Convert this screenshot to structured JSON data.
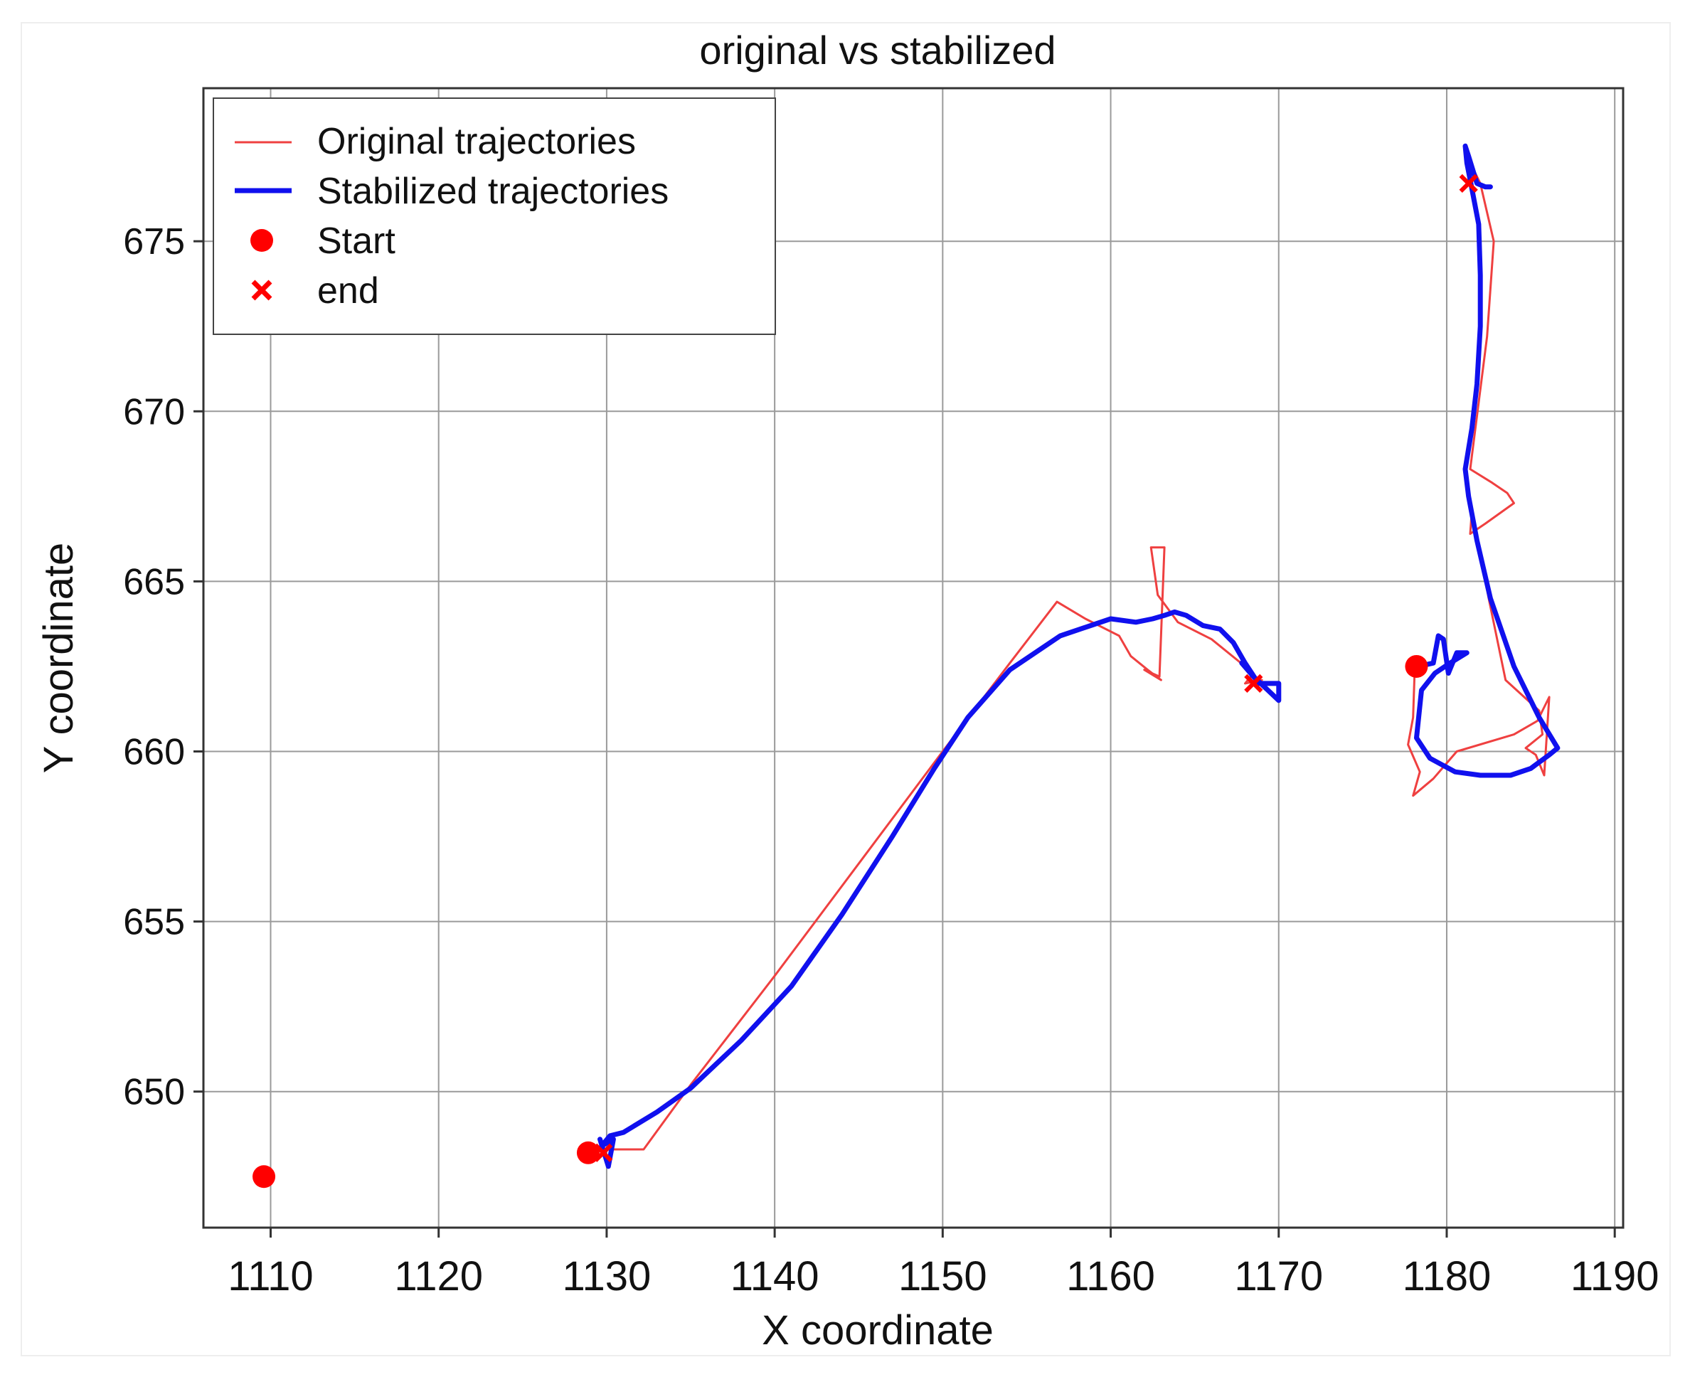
{
  "chart_data": {
    "type": "line",
    "title": "original vs stabilized",
    "xlabel": "X coordinate",
    "ylabel": "Y coordinate",
    "xlim": [
      1106,
      1190.5
    ],
    "ylim": [
      646,
      679.5
    ],
    "xticks": [
      1110,
      1120,
      1130,
      1140,
      1150,
      1160,
      1170,
      1180,
      1190
    ],
    "yticks": [
      650,
      655,
      660,
      665,
      670,
      675
    ],
    "grid": true,
    "legend_position": "top-left",
    "colors": {
      "original": "#ef4040",
      "stabilized": "#1010ee",
      "start": "#ff0000",
      "end": "#ff0000"
    },
    "legend": [
      {
        "key": "original",
        "label": "Original trajectories"
      },
      {
        "key": "stabilized",
        "label": "Stabilized trajectories"
      },
      {
        "key": "start",
        "label": "Start"
      },
      {
        "key": "end",
        "label": "end"
      }
    ],
    "series": [
      {
        "name": "Original trajectories",
        "kind": "original",
        "points": [
          [
            1130,
            648.3
          ],
          [
            1132.2,
            648.3
          ],
          [
            1135,
            650.2
          ],
          [
            1140,
            653.4
          ],
          [
            1145,
            656.7
          ],
          [
            1150,
            660.0
          ],
          [
            1154,
            662.6
          ],
          [
            1156.8,
            664.4
          ],
          [
            1158.5,
            663.9
          ],
          [
            1160.5,
            663.4
          ],
          [
            1161.2,
            662.8
          ],
          [
            1162.2,
            662.4
          ],
          [
            1163,
            662.1
          ],
          [
            1162,
            662.4
          ],
          [
            1162.9,
            662.2
          ],
          [
            1163.2,
            666.0
          ],
          [
            1162.4,
            666.0
          ],
          [
            1162.8,
            664.6
          ],
          [
            1164,
            663.8
          ],
          [
            1166,
            663.3
          ],
          [
            1168.5,
            662.3
          ],
          [
            1168,
            662.0
          ],
          [
            1169,
            662.1
          ]
        ]
      },
      {
        "name": "Original trajectories",
        "kind": "original",
        "points": [
          [
            1178.1,
            662.5
          ],
          [
            1178.0,
            661.0
          ],
          [
            1177.7,
            660.2
          ],
          [
            1178.4,
            659.4
          ],
          [
            1178.0,
            658.7
          ],
          [
            1179.2,
            659.2
          ],
          [
            1180.6,
            660.0
          ],
          [
            1184.0,
            660.5
          ],
          [
            1185.4,
            660.9
          ],
          [
            1186.1,
            661.6
          ],
          [
            1185.8,
            659.3
          ],
          [
            1185.3,
            659.9
          ],
          [
            1184.7,
            660.1
          ],
          [
            1185.7,
            660.5
          ],
          [
            1185.5,
            661.2
          ],
          [
            1183.5,
            662.1
          ],
          [
            1182.5,
            664.5
          ],
          [
            1181.5,
            667.1
          ],
          [
            1181.4,
            666.4
          ],
          [
            1182.3,
            666.7
          ],
          [
            1184.0,
            667.3
          ],
          [
            1183.6,
            667.6
          ],
          [
            1182.7,
            667.9
          ],
          [
            1181.4,
            668.3
          ],
          [
            1181.5,
            668.7
          ],
          [
            1182.4,
            672.2
          ],
          [
            1182.8,
            675.0
          ],
          [
            1182.0,
            676.7
          ],
          [
            1181.3,
            677.4
          ]
        ]
      },
      {
        "name": "Stabilized trajectories",
        "kind": "stabilized",
        "points": [
          [
            1129.6,
            648.6
          ],
          [
            1130.1,
            647.8
          ],
          [
            1130.4,
            648.6
          ],
          [
            1129.7,
            648.4
          ],
          [
            1130.2,
            648.7
          ],
          [
            1131,
            648.8
          ],
          [
            1133,
            649.4
          ],
          [
            1135,
            650.1
          ],
          [
            1138,
            651.5
          ],
          [
            1141,
            653.1
          ],
          [
            1144,
            655.2
          ],
          [
            1147,
            657.5
          ],
          [
            1149.5,
            659.5
          ],
          [
            1151.5,
            661.0
          ],
          [
            1154,
            662.4
          ],
          [
            1157,
            663.4
          ],
          [
            1160,
            663.9
          ],
          [
            1161.5,
            663.8
          ],
          [
            1162.5,
            663.9
          ],
          [
            1163.2,
            664.0
          ],
          [
            1163.8,
            664.1
          ],
          [
            1164.5,
            664.0
          ],
          [
            1165.5,
            663.7
          ],
          [
            1166.5,
            663.6
          ],
          [
            1167.3,
            663.2
          ],
          [
            1168.0,
            662.6
          ],
          [
            1168.8,
            662.0
          ],
          [
            1170.0,
            662.0
          ],
          [
            1170.0,
            661.5
          ],
          [
            1168.5,
            662.2
          ],
          [
            1167.8,
            662.6
          ]
        ]
      },
      {
        "name": "Stabilized trajectories",
        "kind": "stabilized",
        "points": [
          [
            1178.3,
            662.5
          ],
          [
            1179.2,
            662.6
          ],
          [
            1179.5,
            663.4
          ],
          [
            1179.8,
            663.3
          ],
          [
            1180.1,
            662.3
          ],
          [
            1180.6,
            662.9
          ],
          [
            1181.2,
            662.9
          ],
          [
            1180.2,
            662.6
          ],
          [
            1179.3,
            662.3
          ],
          [
            1178.5,
            661.8
          ],
          [
            1178.2,
            660.4
          ],
          [
            1179.0,
            659.8
          ],
          [
            1180.5,
            659.4
          ],
          [
            1182.0,
            659.3
          ],
          [
            1183.8,
            659.3
          ],
          [
            1185.0,
            659.5
          ],
          [
            1186.1,
            659.9
          ],
          [
            1186.6,
            660.1
          ],
          [
            1185.5,
            661.0
          ],
          [
            1184.0,
            662.5
          ],
          [
            1182.6,
            664.5
          ],
          [
            1181.8,
            666.2
          ],
          [
            1181.3,
            667.5
          ],
          [
            1181.1,
            668.3
          ],
          [
            1181.5,
            669.5
          ],
          [
            1181.8,
            670.8
          ],
          [
            1182.0,
            672.5
          ],
          [
            1182.0,
            674.0
          ],
          [
            1181.9,
            675.5
          ],
          [
            1181.4,
            676.8
          ],
          [
            1181.2,
            677.3
          ],
          [
            1181.1,
            677.8
          ],
          [
            1181.3,
            677.5
          ],
          [
            1181.8,
            676.7
          ],
          [
            1182.3,
            676.6
          ],
          [
            1182.6,
            676.6
          ]
        ]
      }
    ],
    "start_points": [
      [
        1109.6,
        647.5
      ],
      [
        1128.9,
        648.2
      ],
      [
        1178.2,
        662.5
      ]
    ],
    "end_points": [
      [
        1109.6,
        647.5
      ],
      [
        1129.8,
        648.2
      ],
      [
        1168.5,
        662.0
      ],
      [
        1181.3,
        676.7
      ]
    ]
  }
}
